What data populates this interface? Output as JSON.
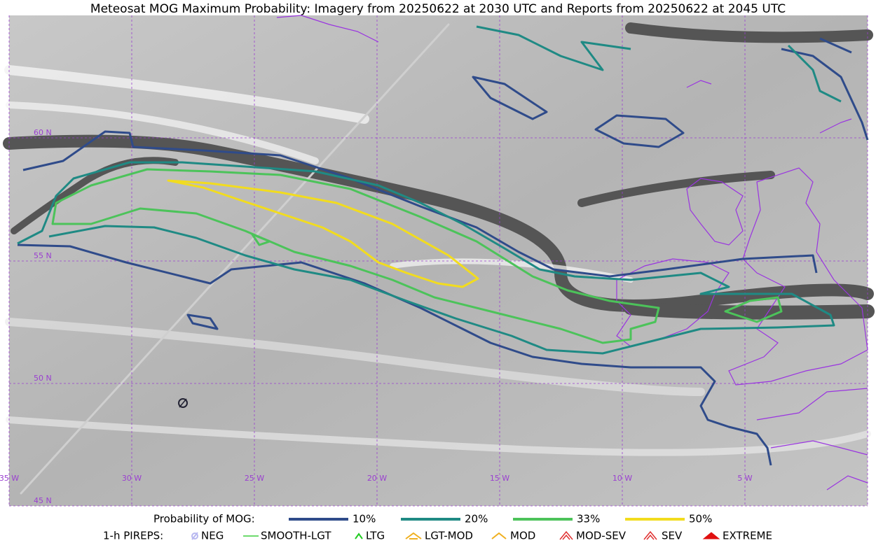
{
  "title": "Meteosat MOG Maximum Probability: Imagery from 20250622 at 2030 UTC and Reports from 20250622 at 2045 UTC",
  "map": {
    "lat_labels": [
      "60 N",
      "55 N",
      "50 N",
      "45 N"
    ],
    "lon_labels": [
      "35 W",
      "30 W",
      "25 W",
      "20 W",
      "15 W",
      "10 W",
      "5 W"
    ]
  },
  "legend": {
    "probability": {
      "label": "Probability of MOG:",
      "levels": [
        {
          "label": "10%",
          "color": "#2f4b8a"
        },
        {
          "label": "20%",
          "color": "#1f8a84"
        },
        {
          "label": "33%",
          "color": "#4cc35a"
        },
        {
          "label": "50%",
          "color": "#f2dc1e"
        }
      ]
    },
    "pireps": {
      "label": "1-h PIREPS:",
      "items": [
        {
          "label": "NEG",
          "color": "#b8b8f0"
        },
        {
          "label": "SMOOTH-LGT",
          "color": "#3fcf3f"
        },
        {
          "label": "LTG",
          "color": "#22cc22"
        },
        {
          "label": "LGT-MOD",
          "color": "#f0b020"
        },
        {
          "label": "MOD",
          "color": "#f0b020"
        },
        {
          "label": "MOD-SEV",
          "color": "#e03030"
        },
        {
          "label": "SEV",
          "color": "#e03030"
        },
        {
          "label": "EXTREME",
          "color": "#e01010"
        }
      ]
    }
  }
}
